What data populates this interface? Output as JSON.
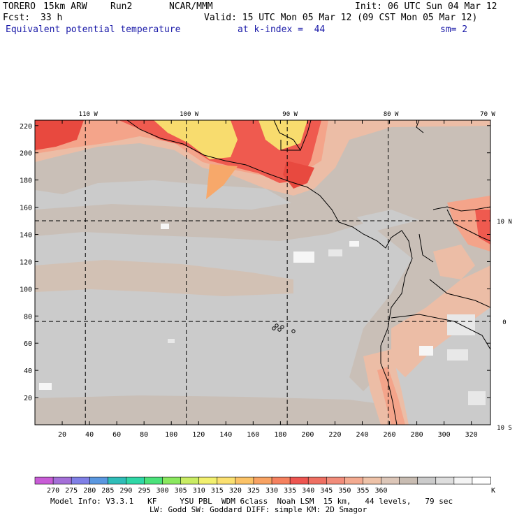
{
  "header": {
    "model": "TORERO",
    "resolution": "15km ARW",
    "run": "Run2",
    "center": "NCAR/MMM",
    "init": "Init: 06 UTC Sun 04 Mar 12",
    "fcst_label": "Fcst:",
    "fcst_value": "33 h",
    "valid": "Valid: 15 UTC Mon 05 Mar 12 (09 CST Mon 05 Mar 12)",
    "field": "Equivalent potential temperature",
    "level": "at k-index =  44",
    "smoothing": "sm= 2"
  },
  "map": {
    "lon_labels": [
      "110 W",
      "100 W",
      "90 W",
      "80 W",
      "70 W"
    ],
    "lat_labels": [
      "10 N",
      "0",
      "10 S"
    ],
    "y_ticks": [
      "220",
      "200",
      "180",
      "160",
      "140",
      "120",
      "100",
      "80",
      "60",
      "40",
      "20"
    ],
    "x_ticks": [
      "20",
      "40",
      "60",
      "80",
      "100",
      "120",
      "140",
      "160",
      "180",
      "200",
      "220",
      "240",
      "260",
      "280",
      "300",
      "320"
    ],
    "grid_ranges": {
      "x": [
        0,
        334
      ],
      "y": [
        0,
        224
      ]
    },
    "meridian_grid_x": [
      37,
      111,
      185,
      259
    ],
    "parallel_grid_y": [
      150,
      76
    ],
    "background_color": "#cbcbcb",
    "land_outline": "black"
  },
  "colorbar": {
    "colors": [
      "#c85cd6",
      "#a46fd8",
      "#7f7fe6",
      "#5a97e0",
      "#2fbdb8",
      "#2fd7a6",
      "#4ae27a",
      "#8ae85e",
      "#c9ec63",
      "#f2f06e",
      "#fbe070",
      "#fbc266",
      "#f8a262",
      "#f5805e",
      "#ee5550",
      "#ef6f62",
      "#f28c7a",
      "#f3aa90",
      "#eec2a8",
      "#dcc6b8",
      "#c8bcb2",
      "#cbcbcb",
      "#dedede",
      "#f4f4f4",
      "#ffffff"
    ],
    "labels": [
      "270",
      "275",
      "280",
      "285",
      "290",
      "295",
      "300",
      "305",
      "310",
      "315",
      "320",
      "325",
      "330",
      "335",
      "340",
      "345",
      "350",
      "355",
      "360"
    ],
    "units": "K"
  },
  "footer": {
    "line1": "Model Info: V3.3.1   KF     YSU PBL  WDM 6class  Noah LSM  15 km,   44 levels,   79 sec",
    "line2": "LW: Godd SW: Goddard DIFF: simple KM: 2D Smagor"
  }
}
